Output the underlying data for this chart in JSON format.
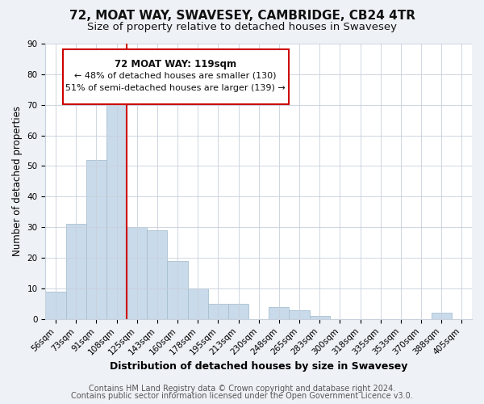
{
  "title": "72, MOAT WAY, SWAVESEY, CAMBRIDGE, CB24 4TR",
  "subtitle": "Size of property relative to detached houses in Swavesey",
  "xlabel": "Distribution of detached houses by size in Swavesey",
  "ylabel": "Number of detached properties",
  "bar_labels": [
    "56sqm",
    "73sqm",
    "91sqm",
    "108sqm",
    "125sqm",
    "143sqm",
    "160sqm",
    "178sqm",
    "195sqm",
    "213sqm",
    "230sqm",
    "248sqm",
    "265sqm",
    "283sqm",
    "300sqm",
    "318sqm",
    "335sqm",
    "353sqm",
    "370sqm",
    "388sqm",
    "405sqm"
  ],
  "bar_heights": [
    9,
    31,
    52,
    70,
    30,
    29,
    19,
    10,
    5,
    5,
    0,
    4,
    3,
    1,
    0,
    0,
    0,
    0,
    0,
    2,
    0
  ],
  "bar_color": "#c9daea",
  "bar_edge_color": "#a8c0d0",
  "reference_line_color": "#cc0000",
  "reference_line_index": 3,
  "ylim": [
    0,
    90
  ],
  "yticks": [
    0,
    10,
    20,
    30,
    40,
    50,
    60,
    70,
    80,
    90
  ],
  "annotation_lines": [
    "72 MOAT WAY: 119sqm",
    "← 48% of detached houses are smaller (130)",
    "51% of semi-detached houses are larger (139) →"
  ],
  "footer_line1": "Contains HM Land Registry data © Crown copyright and database right 2024.",
  "footer_line2": "Contains public sector information licensed under the Open Government Licence v3.0.",
  "background_color": "#eef2f7",
  "plot_background_color": "#ffffff",
  "grid_color": "#c8d0dc",
  "title_fontsize": 11,
  "subtitle_fontsize": 9.5,
  "tick_fontsize": 7.5,
  "ylabel_fontsize": 8.5,
  "xlabel_fontsize": 9,
  "footer_fontsize": 7
}
